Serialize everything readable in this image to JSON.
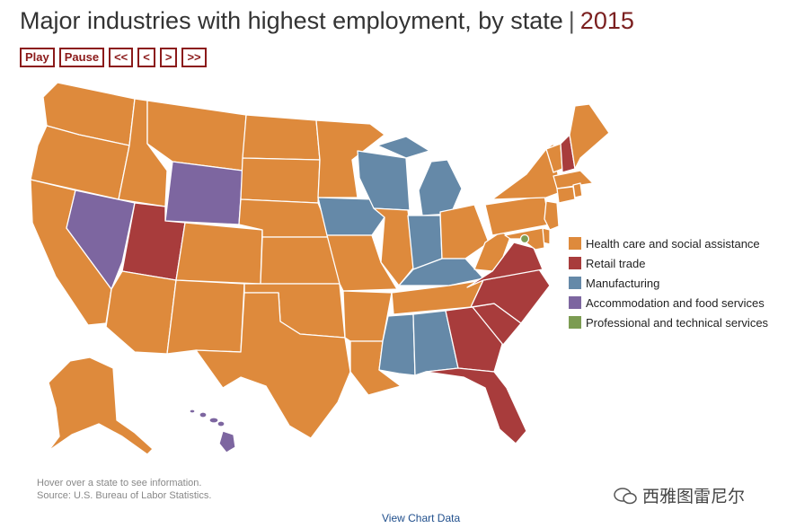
{
  "title": {
    "main": "Major industries with highest employment, by state",
    "separator": "|",
    "year": "2015"
  },
  "controls": {
    "play": "Play",
    "pause": "Pause",
    "first": "<<",
    "prev": "<",
    "next": ">",
    "last": ">>"
  },
  "colors": {
    "health": "#de8a3c",
    "retail": "#a83c3c",
    "manufacturing": "#6589a8",
    "accommodation": "#7d66a0",
    "professional": "#7c9c52",
    "accent": "#8b1a1a"
  },
  "legend": [
    {
      "key": "health",
      "label": "Health care and social assistance"
    },
    {
      "key": "retail",
      "label": "Retail trade"
    },
    {
      "key": "manufacturing",
      "label": "Manufacturing"
    },
    {
      "key": "accommodation",
      "label": "Accommodation and food services"
    },
    {
      "key": "professional",
      "label": "Professional and technical services"
    }
  ],
  "state_industries": {
    "WA": "health",
    "OR": "health",
    "CA": "health",
    "NV": "accommodation",
    "ID": "health",
    "MT": "health",
    "WY": "accommodation",
    "UT": "retail",
    "AZ": "health",
    "NM": "health",
    "CO": "health",
    "ND": "health",
    "SD": "health",
    "NE": "health",
    "KS": "health",
    "OK": "health",
    "TX": "health",
    "MN": "health",
    "IA": "manufacturing",
    "MO": "health",
    "AR": "health",
    "LA": "health",
    "WI": "manufacturing",
    "IL": "health",
    "MI": "manufacturing",
    "IN": "manufacturing",
    "OH": "health",
    "KY": "manufacturing",
    "TN": "health",
    "MS": "manufacturing",
    "AL": "manufacturing",
    "GA": "retail",
    "FL": "retail",
    "SC": "retail",
    "NC": "retail",
    "VA": "retail",
    "WV": "health",
    "PA": "health",
    "NY": "health",
    "VT": "health",
    "NH": "retail",
    "ME": "health",
    "MA": "health",
    "CT": "health",
    "RI": "health",
    "NJ": "health",
    "DE": "health",
    "MD": "health",
    "DC": "professional",
    "AK": "health",
    "HI": "accommodation"
  },
  "notes": {
    "hover": "Hover over a state to see information.",
    "source": "Source: U.S. Bureau of Labor Statistics."
  },
  "view_data": "View Chart Data",
  "watermark": "西雅图雷尼尔"
}
